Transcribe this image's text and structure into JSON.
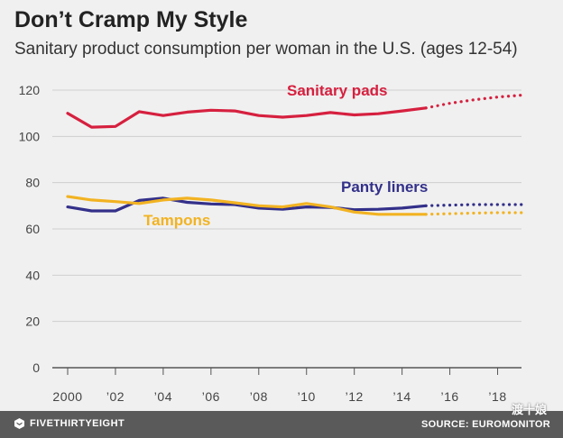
{
  "header": {
    "title": "Don’t Cramp My Style",
    "subtitle": "Sanitary product consumption per woman in the U.S. (ages 12-54)"
  },
  "footer": {
    "brand": "FIVETHIRTYEIGHT",
    "source": "SOURCE: EUROMONITOR",
    "watermark": "渡十娘"
  },
  "chart_data": {
    "type": "line",
    "title": "Don’t Cramp My Style",
    "subtitle": "Sanitary product consumption per woman in the U.S. (ages 12-54)",
    "xlabel": "",
    "ylabel": "",
    "xlim": [
      2000,
      2019
    ],
    "ylim": [
      0,
      120
    ],
    "yticks": [
      0,
      20,
      40,
      60,
      80,
      100,
      120
    ],
    "yticklabels": [
      "0",
      "20",
      "40",
      "60",
      "80",
      "100",
      "120"
    ],
    "xticks": [
      2000,
      2002,
      2004,
      2006,
      2008,
      2010,
      2012,
      2014,
      2016,
      2018
    ],
    "xticklabels": [
      "2000",
      "’02",
      "’04",
      "’06",
      "’08",
      "’10",
      "’12",
      "’14",
      "’16",
      "’18"
    ],
    "grid": true,
    "actual_through": 2015,
    "series": [
      {
        "name": "Sanitary pads",
        "color": "#d6203f",
        "x": [
          2000,
          2001,
          2002,
          2003,
          2004,
          2005,
          2006,
          2007,
          2008,
          2009,
          2010,
          2011,
          2012,
          2013,
          2014,
          2015
        ],
        "values": [
          110,
          104,
          104.3,
          110.7,
          109,
          110.5,
          111.3,
          111,
          109,
          108.3,
          109,
          110.3,
          109.3,
          109.8,
          111,
          112.3
        ],
        "forecast_x": [
          2015,
          2016,
          2017,
          2018,
          2019
        ],
        "forecast_values": [
          112.3,
          114.3,
          115.8,
          117,
          117.8
        ]
      },
      {
        "name": "Panty liners",
        "color": "#33308a",
        "x": [
          2000,
          2001,
          2002,
          2003,
          2004,
          2005,
          2006,
          2007,
          2008,
          2009,
          2010,
          2011,
          2012,
          2013,
          2014,
          2015
        ],
        "values": [
          69.5,
          67.8,
          67.8,
          72.3,
          73.3,
          71.5,
          70.8,
          70.5,
          69,
          68.5,
          69.5,
          69.3,
          68.3,
          68.5,
          69,
          70
        ],
        "forecast_x": [
          2015,
          2016,
          2017,
          2018,
          2019
        ],
        "forecast_values": [
          70,
          70.3,
          70.5,
          70.5,
          70.5
        ]
      },
      {
        "name": "Tampons",
        "color": "#f2b322",
        "x": [
          2000,
          2001,
          2002,
          2003,
          2004,
          2005,
          2006,
          2007,
          2008,
          2009,
          2010,
          2011,
          2012,
          2013,
          2014,
          2015
        ],
        "values": [
          74,
          72.5,
          71.8,
          71,
          72.5,
          73.3,
          72.5,
          71.3,
          70,
          69.5,
          71,
          69.5,
          67.3,
          66.3,
          66.3,
          66.3
        ],
        "forecast_x": [
          2015,
          2016,
          2017,
          2018,
          2019
        ],
        "forecast_values": [
          66.3,
          66.6,
          66.8,
          67,
          67
        ]
      }
    ]
  }
}
